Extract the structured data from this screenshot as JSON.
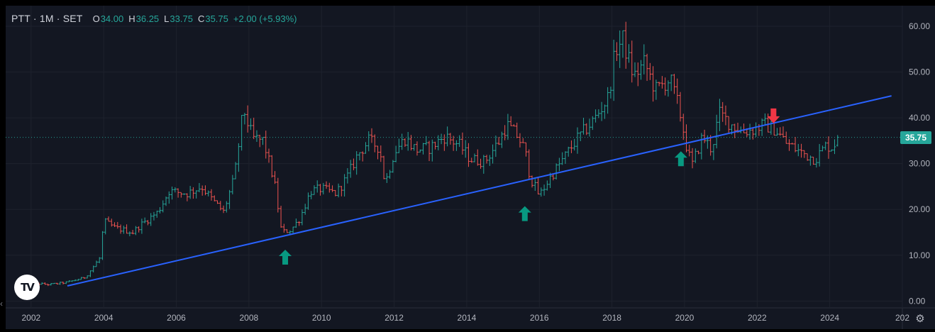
{
  "legend": {
    "symbol": "PTT · 1M · SET",
    "open_label": "O",
    "open": "34.00",
    "high_label": "H",
    "high": "36.25",
    "low_label": "L",
    "low": "33.75",
    "close_label": "C",
    "close": "35.75",
    "change": "+2.00 (+5.93%)"
  },
  "last_price_label": "35.75",
  "icons": {
    "logo": "tradingview-logo-icon",
    "settings": "gear-icon",
    "scroll_left": "chevron-left-icon",
    "up_arrow": "arrow-up-icon",
    "down_arrow": "arrow-down-icon"
  },
  "logo_text": "TV",
  "colors": {
    "background": "#131722",
    "up": "#26a69a",
    "down": "#ef5350",
    "trendline": "#2962ff",
    "arrow_up": "#089981",
    "arrow_down": "#f23645",
    "text": "#d1d4dc"
  },
  "chart_data": {
    "type": "ohlc",
    "interval": "1M",
    "y_axis": {
      "side": "right",
      "range": [
        -1.5,
        64.5
      ],
      "ticks": [
        "0.00",
        "10.00",
        "20.00",
        "30.00",
        "40.00",
        "50.00",
        "60.00"
      ]
    },
    "x_axis": {
      "range": [
        2001.3,
        2026.0
      ],
      "ticks": [
        "2002",
        "2004",
        "2006",
        "2008",
        "2010",
        "2012",
        "2014",
        "2016",
        "2018",
        "2020",
        "2022",
        "2024",
        "202"
      ]
    },
    "grid": true,
    "price_line": 35.75,
    "trendline": {
      "start": {
        "x": 2003.0,
        "y": 3.3
      },
      "end": {
        "x": 2025.7,
        "y": 44.8
      }
    },
    "annotations": [
      {
        "type": "arrow-up",
        "x": 2009.0,
        "y": 9.5
      },
      {
        "type": "arrow-up",
        "x": 2015.6,
        "y": 19.0
      },
      {
        "type": "arrow-up",
        "x": 2019.9,
        "y": 31.0
      },
      {
        "type": "arrow-down",
        "x": 2022.45,
        "y": 40.5
      }
    ],
    "anchors": [
      [
        2001.8,
        4.0
      ],
      [
        2002.5,
        3.6
      ],
      [
        2003.0,
        4.1
      ],
      [
        2003.5,
        5.2
      ],
      [
        2003.9,
        9.5
      ],
      [
        2004.0,
        17.5
      ],
      [
        2004.3,
        16.0
      ],
      [
        2004.8,
        15.0
      ],
      [
        2005.0,
        16.5
      ],
      [
        2005.5,
        19.5
      ],
      [
        2005.8,
        24.0
      ],
      [
        2006.3,
        23.5
      ],
      [
        2006.7,
        25.0
      ],
      [
        2007.0,
        22.0
      ],
      [
        2007.3,
        19.5
      ],
      [
        2007.6,
        27.0
      ],
      [
        2007.85,
        42.0
      ],
      [
        2008.1,
        35.5
      ],
      [
        2008.4,
        35.0
      ],
      [
        2008.7,
        26.0
      ],
      [
        2008.9,
        15.0
      ],
      [
        2009.15,
        15.5
      ],
      [
        2009.4,
        18.0
      ],
      [
        2009.7,
        24.0
      ],
      [
        2010.0,
        24.5
      ],
      [
        2010.4,
        23.5
      ],
      [
        2010.7,
        27.0
      ],
      [
        2011.0,
        32.0
      ],
      [
        2011.3,
        35.0
      ],
      [
        2011.6,
        33.5
      ],
      [
        2011.75,
        25.5
      ],
      [
        2012.0,
        32.5
      ],
      [
        2012.3,
        35.5
      ],
      [
        2012.6,
        33.0
      ],
      [
        2013.0,
        33.5
      ],
      [
        2013.4,
        36.0
      ],
      [
        2013.8,
        34.0
      ],
      [
        2014.1,
        31.0
      ],
      [
        2014.5,
        30.5
      ],
      [
        2014.9,
        35.0
      ],
      [
        2015.1,
        38.5
      ],
      [
        2015.4,
        36.0
      ],
      [
        2015.6,
        33.0
      ],
      [
        2015.75,
        27.0
      ],
      [
        2016.0,
        23.0
      ],
      [
        2016.3,
        27.0
      ],
      [
        2016.7,
        31.5
      ],
      [
        2017.0,
        35.0
      ],
      [
        2017.5,
        39.5
      ],
      [
        2017.9,
        44.5
      ],
      [
        2018.1,
        55.0
      ],
      [
        2018.3,
        57.0
      ],
      [
        2018.6,
        49.0
      ],
      [
        2018.9,
        52.0
      ],
      [
        2019.2,
        46.0
      ],
      [
        2019.6,
        48.5
      ],
      [
        2019.85,
        42.0
      ],
      [
        2020.05,
        34.0
      ],
      [
        2020.2,
        29.5
      ],
      [
        2020.5,
        36.0
      ],
      [
        2020.75,
        33.0
      ],
      [
        2020.95,
        41.0
      ],
      [
        2021.3,
        38.5
      ],
      [
        2021.6,
        37.0
      ],
      [
        2021.9,
        37.5
      ],
      [
        2022.2,
        38.5
      ],
      [
        2022.5,
        37.5
      ],
      [
        2022.8,
        34.5
      ],
      [
        2023.2,
        32.5
      ],
      [
        2023.6,
        31.0
      ],
      [
        2023.9,
        34.0
      ],
      [
        2024.1,
        33.5
      ],
      [
        2024.2,
        35.75
      ]
    ]
  }
}
